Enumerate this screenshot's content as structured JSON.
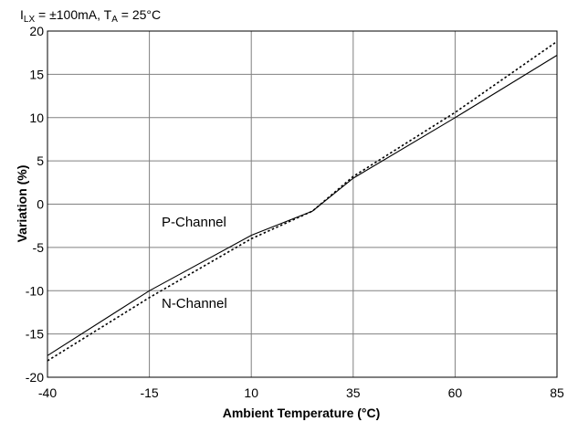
{
  "chart_data": {
    "type": "line",
    "title": "",
    "conditions": {
      "i_main": "I",
      "i_sub": "LX",
      "i_rest": " = ±100mA, T",
      "t_sub": "A",
      "t_rest": " = 25°C"
    },
    "xlabel": "Ambient Temperature (°C)",
    "ylabel": "Variation (%)",
    "xlim": [
      -40,
      85
    ],
    "ylim": [
      -20,
      20
    ],
    "xticks": [
      -40,
      -15,
      10,
      35,
      60,
      85
    ],
    "yticks": [
      20,
      15,
      10,
      5,
      0,
      -5,
      -10,
      -15,
      -20
    ],
    "grid": true,
    "series": [
      {
        "name": "P-Channel",
        "style": "solid",
        "x": [
          -40,
          -15,
          10,
          25,
          35,
          60,
          85
        ],
        "y": [
          -17.5,
          -10,
          -3.6,
          -0.8,
          3.0,
          10.0,
          17.2
        ]
      },
      {
        "name": "N-Channel",
        "style": "dotted",
        "x": [
          -40,
          -15,
          10,
          25,
          35,
          60,
          85
        ],
        "y": [
          -18.1,
          -10.8,
          -4.0,
          -0.8,
          3.2,
          10.6,
          18.8
        ]
      }
    ],
    "annotations": [
      {
        "text": "P-Channel",
        "x": -12,
        "y": -2.6
      },
      {
        "text": "N-Channel",
        "x": -12,
        "y": -12.0
      }
    ]
  }
}
